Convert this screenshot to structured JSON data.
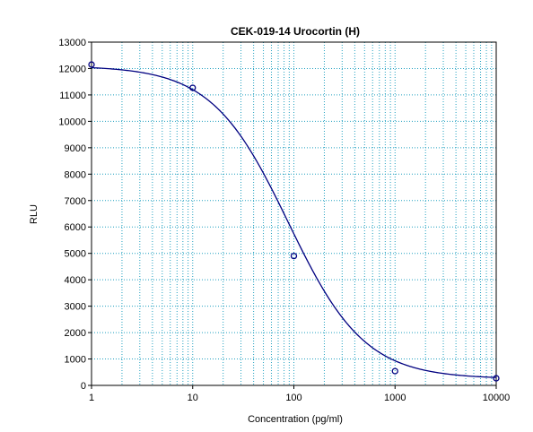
{
  "chart_data": {
    "type": "scatter",
    "title": "CEK-019-14 Urocortin (H)",
    "xlabel": "Concentration (pg/ml)",
    "ylabel": "RLU",
    "x_scale": "log",
    "xlim": [
      1,
      10000
    ],
    "ylim": [
      0,
      13000
    ],
    "x_ticks": [
      1,
      10,
      100,
      1000,
      10000
    ],
    "x_tick_labels": [
      "1",
      "10",
      "100",
      "1000",
      "10000"
    ],
    "y_ticks": [
      0,
      1000,
      2000,
      3000,
      4000,
      5000,
      6000,
      7000,
      8000,
      9000,
      10000,
      11000,
      12000,
      13000
    ],
    "y_tick_labels": [
      "0",
      "1000",
      "2000",
      "3000",
      "4000",
      "5000",
      "6000",
      "7000",
      "8000",
      "9000",
      "10000",
      "11000",
      "12000",
      "13000"
    ],
    "grid": true,
    "grid_style": "dotted",
    "legend": "none",
    "series": [
      {
        "kind": "points",
        "x": [
          1,
          10,
          100,
          1000,
          10000
        ],
        "y": [
          12150,
          11270,
          4900,
          540,
          270
        ],
        "marker": "open-circle"
      },
      {
        "kind": "fit-curve",
        "model": "4PL",
        "params": {
          "top": 12100,
          "bottom": 250,
          "ec50": 88,
          "hill": 1.15
        }
      }
    ],
    "colors": {
      "curve": "#000080",
      "points": "#000080",
      "grid": "#20a0c0",
      "axis": "#000000"
    }
  }
}
